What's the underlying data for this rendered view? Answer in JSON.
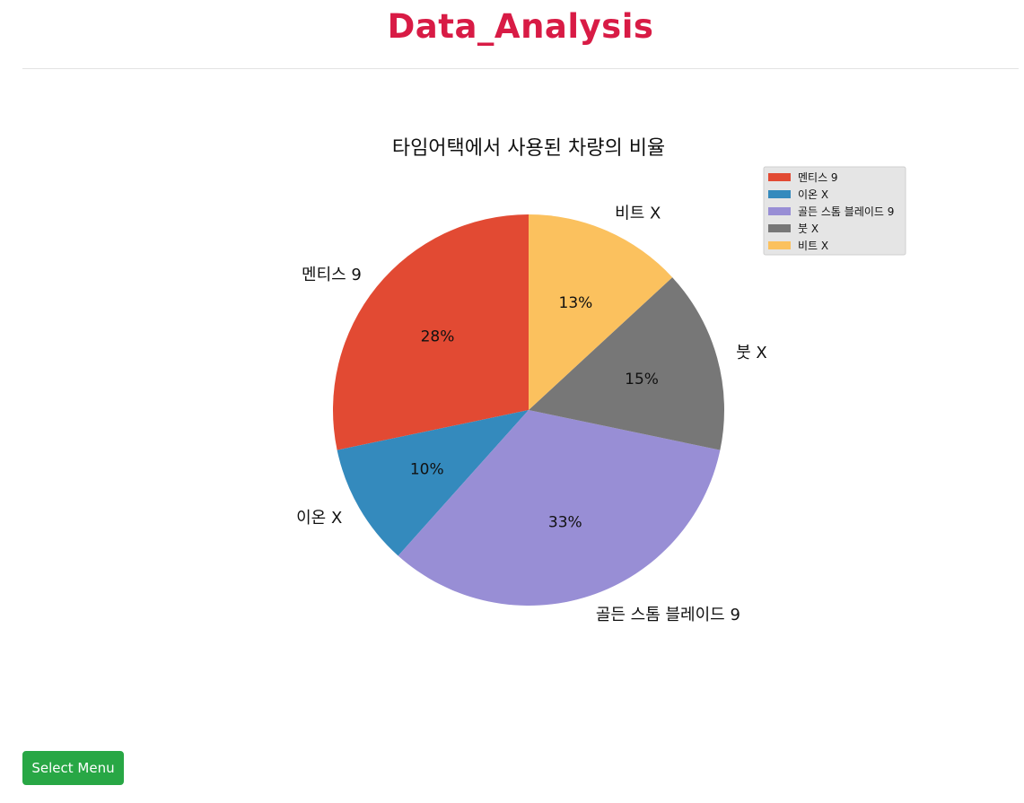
{
  "app": {
    "title": "Data_Analysis",
    "title_color": "#d81b45"
  },
  "chart_data": {
    "type": "pie",
    "title": "타임어택에서 사용된 차량의 비율",
    "categories": [
      "멘티스 9",
      "이온 X",
      "골든 스톰 블레이드 9",
      "붓 X",
      "비트 X"
    ],
    "values": [
      28,
      10,
      33,
      15,
      13
    ],
    "value_labels": [
      "28%",
      "10%",
      "33%",
      "15%",
      "13%"
    ],
    "colors": [
      "#e24a33",
      "#348abd",
      "#988ed5",
      "#777777",
      "#fbc15e"
    ],
    "start_angle": 90,
    "direction": "counterclockwise",
    "legend_placement": "top-right",
    "legend_background": "#e5e5e5"
  },
  "actions": {
    "select_menu_label": "Select Menu",
    "select_menu_color": "#28a745"
  }
}
